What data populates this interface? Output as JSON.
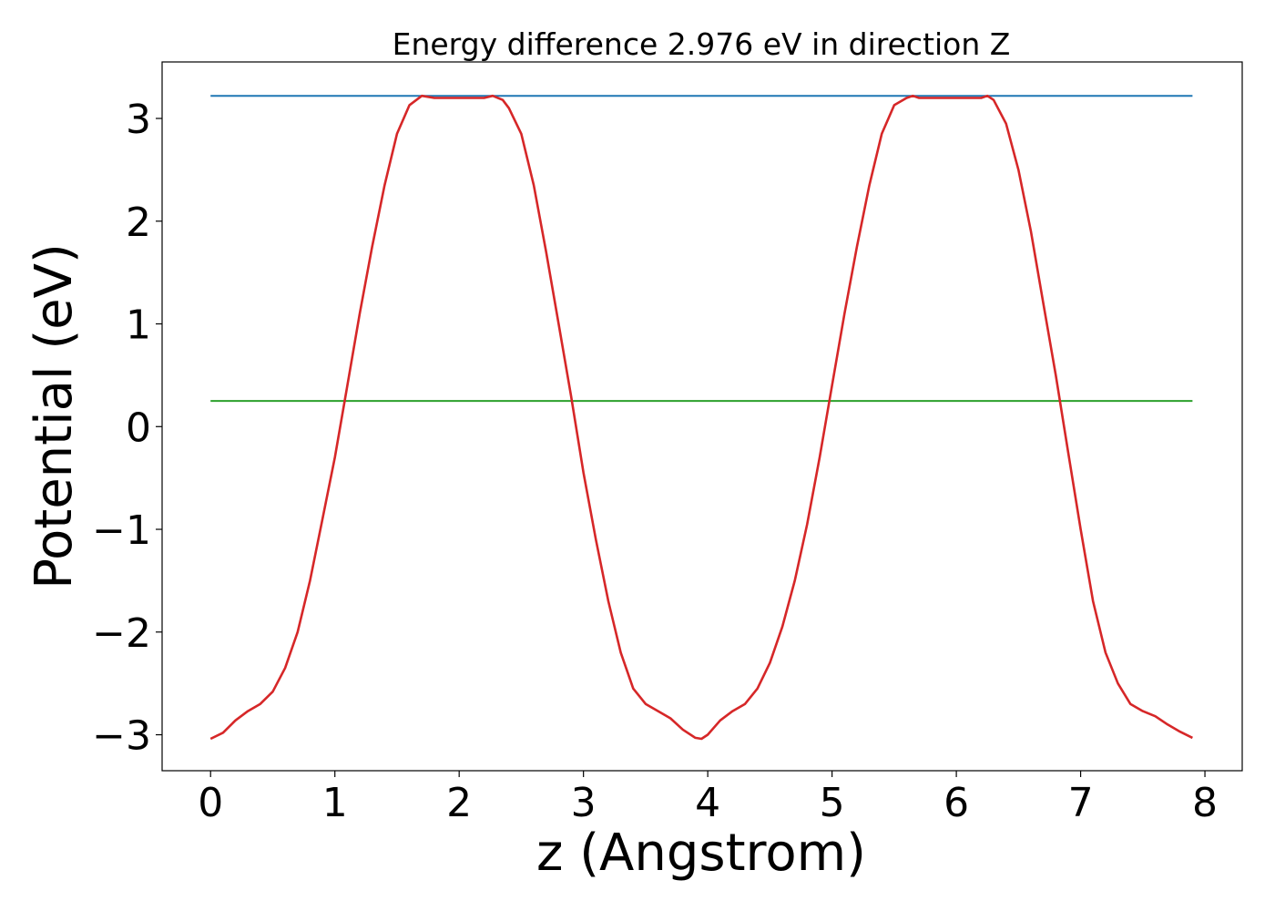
{
  "chart_data": {
    "type": "line",
    "title": "Energy difference 2.976 eV in direction Z",
    "xlabel": "z (Angstrom)",
    "ylabel": "Potential (eV)",
    "xlim": [
      -0.39,
      8.3
    ],
    "ylim": [
      -3.35,
      3.55
    ],
    "xticks": [
      0,
      1,
      2,
      3,
      4,
      5,
      6,
      7,
      8
    ],
    "yticks": [
      -3,
      -2,
      -1,
      0,
      1,
      2,
      3
    ],
    "xtick_labels": [
      "0",
      "1",
      "2",
      "3",
      "4",
      "5",
      "6",
      "7",
      "8"
    ],
    "ytick_labels": [
      "−3",
      "−2",
      "−1",
      "0",
      "1",
      "2",
      "3"
    ],
    "grid": false,
    "legend": "none",
    "series": [
      {
        "color": "#d62728",
        "x": [
          0.0,
          0.1,
          0.2,
          0.3,
          0.4,
          0.5,
          0.6,
          0.7,
          0.8,
          0.9,
          1.0,
          1.1,
          1.2,
          1.3,
          1.4,
          1.5,
          1.6,
          1.7,
          1.8,
          2.0,
          2.2,
          2.27,
          2.35,
          2.4,
          2.5,
          2.6,
          2.7,
          2.8,
          2.9,
          3.0,
          3.1,
          3.2,
          3.3,
          3.4,
          3.5,
          3.6,
          3.7,
          3.8,
          3.9,
          3.95,
          4.0,
          4.1,
          4.2,
          4.3,
          4.4,
          4.5,
          4.6,
          4.7,
          4.8,
          4.9,
          5.0,
          5.1,
          5.2,
          5.3,
          5.4,
          5.5,
          5.6,
          5.65,
          5.7,
          5.8,
          6.0,
          6.2,
          6.25,
          6.3,
          6.4,
          6.5,
          6.6,
          6.7,
          6.8,
          6.9,
          7.0,
          7.1,
          7.2,
          7.3,
          7.4,
          7.5,
          7.6,
          7.7,
          7.8,
          7.9
        ],
        "y": [
          -3.04,
          -2.98,
          -2.86,
          -2.77,
          -2.7,
          -2.58,
          -2.35,
          -2.0,
          -1.5,
          -0.9,
          -0.3,
          0.4,
          1.1,
          1.75,
          2.35,
          2.85,
          3.13,
          3.22,
          3.2,
          3.2,
          3.2,
          3.22,
          3.18,
          3.1,
          2.85,
          2.35,
          1.7,
          1.0,
          0.3,
          -0.45,
          -1.1,
          -1.7,
          -2.2,
          -2.55,
          -2.7,
          -2.77,
          -2.84,
          -2.95,
          -3.03,
          -3.04,
          -3.0,
          -2.86,
          -2.77,
          -2.7,
          -2.55,
          -2.3,
          -1.95,
          -1.5,
          -0.95,
          -0.3,
          0.4,
          1.1,
          1.75,
          2.35,
          2.85,
          3.13,
          3.2,
          3.22,
          3.2,
          3.2,
          3.2,
          3.2,
          3.22,
          3.18,
          2.95,
          2.5,
          1.9,
          1.2,
          0.5,
          -0.25,
          -1.0,
          -1.7,
          -2.2,
          -2.5,
          -2.7,
          -2.77,
          -2.82,
          -2.9,
          -2.97,
          -3.03
        ]
      },
      {
        "color": "#1f77b4",
        "x": [
          0.0,
          7.9
        ],
        "y": [
          3.22,
          3.22
        ]
      },
      {
        "color": "#2ca02c",
        "x": [
          0.0,
          7.9
        ],
        "y": [
          0.25,
          0.25
        ]
      }
    ]
  }
}
